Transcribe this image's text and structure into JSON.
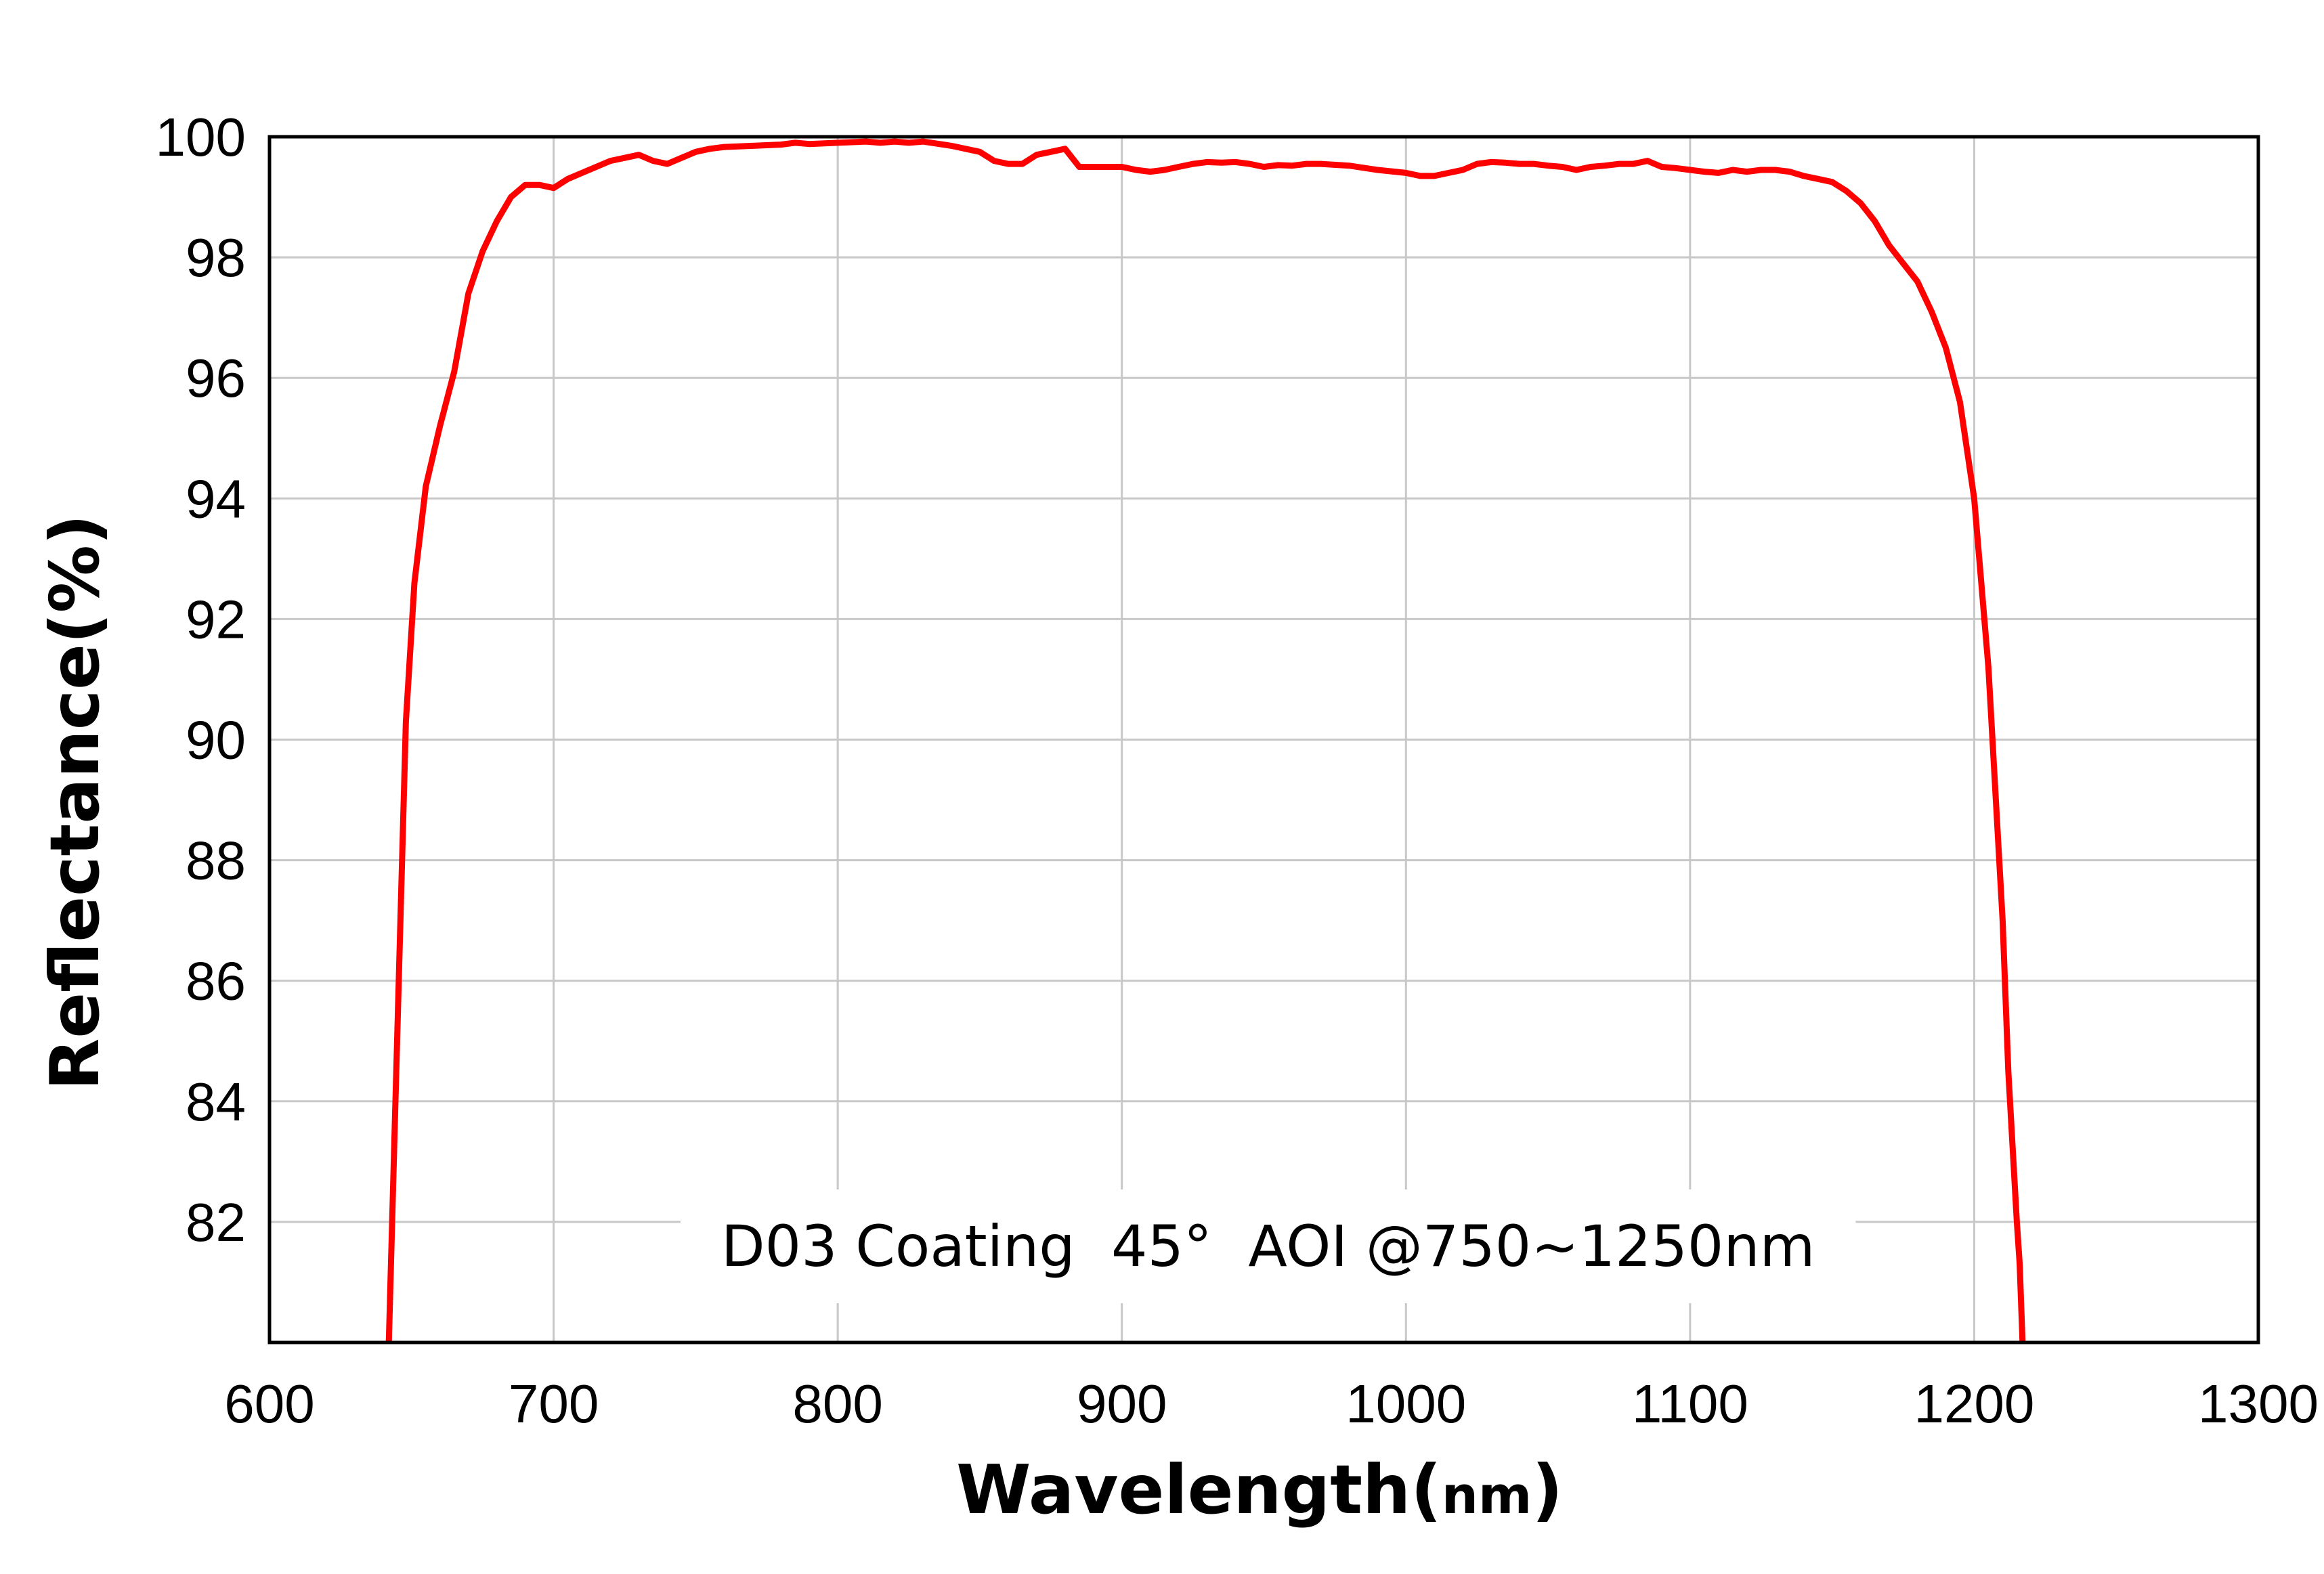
{
  "chart_data": {
    "type": "line",
    "title": "",
    "xlabel_main": "Wavelength(",
    "xlabel_unit": "nm",
    "xlabel_close": ")",
    "ylabel": "Reflectance(%)",
    "xlim": [
      600,
      1300
    ],
    "ylim": [
      80,
      100
    ],
    "x_ticks": [
      "600",
      "700",
      "800",
      "900",
      "1000",
      "1100",
      "1200",
      "1300"
    ],
    "y_ticks": [
      "82",
      "84",
      "86",
      "88",
      "90",
      "92",
      "94",
      "96",
      "98",
      "100"
    ],
    "grid": true,
    "annotation": "D03 Coating  45°  AOI @750~1250nm",
    "series": [
      {
        "color": "#ff0000",
        "x": [
          642,
          648,
          651,
          655,
          660,
          665,
          670,
          675,
          680,
          685,
          690,
          695,
          700,
          705,
          710,
          715,
          720,
          725,
          730,
          735,
          740,
          745,
          750,
          755,
          760,
          770,
          780,
          785,
          790,
          800,
          810,
          815,
          820,
          825,
          830,
          840,
          850,
          855,
          860,
          865,
          870,
          875,
          880,
          885,
          890,
          900,
          905,
          910,
          915,
          920,
          925,
          930,
          935,
          940,
          945,
          950,
          955,
          960,
          965,
          970,
          980,
          990,
          1000,
          1005,
          1010,
          1015,
          1020,
          1025,
          1030,
          1035,
          1040,
          1045,
          1050,
          1055,
          1060,
          1065,
          1070,
          1075,
          1080,
          1085,
          1090,
          1095,
          1100,
          1105,
          1110,
          1115,
          1120,
          1125,
          1130,
          1135,
          1140,
          1145,
          1150,
          1155,
          1160,
          1165,
          1170,
          1175,
          1180,
          1185,
          1190,
          1195,
          1200,
          1205,
          1210,
          1212,
          1215,
          1216,
          1217
        ],
        "y": [
          80,
          90.3,
          92.6,
          94.2,
          95.2,
          96.1,
          97.4,
          98.1,
          98.6,
          99.0,
          99.2,
          99.2,
          99.15,
          99.3,
          99.4,
          99.5,
          99.6,
          99.65,
          99.7,
          99.6,
          99.55,
          99.65,
          99.75,
          99.8,
          99.83,
          99.85,
          99.87,
          99.9,
          99.88,
          99.9,
          99.92,
          99.9,
          99.92,
          99.9,
          99.92,
          99.85,
          99.75,
          99.6,
          99.55,
          99.55,
          99.7,
          99.75,
          99.8,
          99.5,
          99.5,
          99.5,
          99.45,
          99.42,
          99.45,
          99.5,
          99.55,
          99.58,
          99.57,
          99.58,
          99.55,
          99.5,
          99.53,
          99.52,
          99.55,
          99.55,
          99.52,
          99.45,
          99.4,
          99.35,
          99.35,
          99.4,
          99.45,
          99.55,
          99.58,
          99.57,
          99.55,
          99.55,
          99.52,
          99.5,
          99.45,
          99.5,
          99.52,
          99.55,
          99.55,
          99.6,
          99.5,
          99.48,
          99.45,
          99.42,
          99.4,
          99.45,
          99.42,
          99.45,
          99.45,
          99.42,
          99.35,
          99.3,
          99.25,
          99.1,
          98.9,
          98.6,
          98.2,
          97.9,
          97.6,
          97.1,
          96.5,
          95.6,
          94.0,
          91.2,
          87.0,
          84.5,
          82.0,
          81.3,
          80
        ]
      }
    ]
  }
}
